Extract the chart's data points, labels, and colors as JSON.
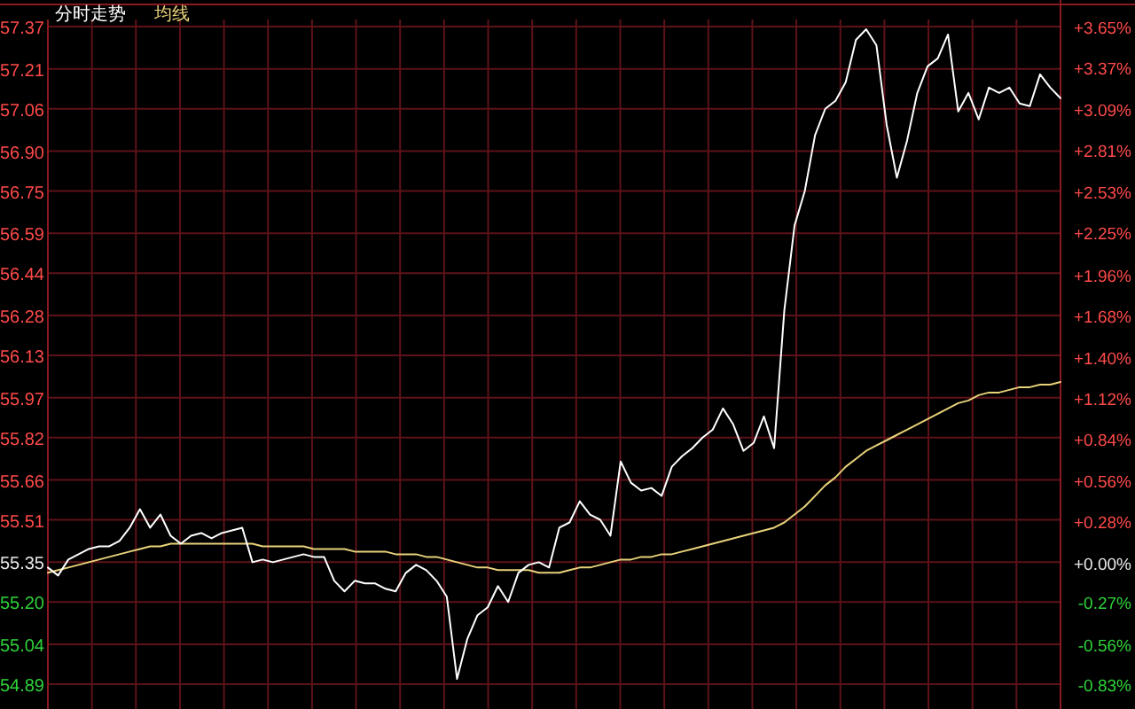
{
  "chart_data": {
    "type": "line",
    "categories": [
      null,
      null,
      null,
      null,
      null,
      null,
      null,
      null,
      null,
      null,
      null,
      null,
      null,
      null,
      null,
      null,
      null,
      null,
      null,
      null,
      null,
      null,
      null,
      null,
      null,
      null,
      null,
      null,
      null,
      null,
      null,
      null,
      null,
      null,
      null,
      null,
      null,
      null,
      null,
      null,
      null,
      null,
      null,
      null,
      null,
      null,
      null,
      null,
      null,
      null,
      null,
      null,
      null,
      null,
      null,
      null,
      null,
      null,
      null,
      null,
      null,
      null,
      null,
      null,
      null,
      null,
      null,
      null,
      null,
      null,
      null,
      null,
      null,
      null,
      null,
      null,
      null,
      null,
      null,
      null,
      null,
      null,
      null,
      null,
      null,
      null,
      null,
      null,
      null,
      null,
      null,
      null,
      null,
      null,
      null,
      null,
      null,
      null,
      null,
      null
    ],
    "series": [
      {
        "name": "分时走势",
        "color": "#ffffff",
        "values": [
          55.33,
          55.3,
          55.36,
          55.38,
          55.4,
          55.41,
          55.41,
          55.43,
          55.48,
          55.55,
          55.48,
          55.53,
          55.45,
          55.42,
          55.45,
          55.46,
          55.44,
          55.46,
          55.47,
          55.48,
          55.35,
          55.36,
          55.35,
          55.36,
          55.37,
          55.38,
          55.37,
          55.37,
          55.28,
          55.24,
          55.28,
          55.27,
          55.27,
          55.25,
          55.24,
          55.31,
          55.34,
          55.32,
          55.28,
          55.22,
          54.91,
          55.06,
          55.15,
          55.18,
          55.26,
          55.2,
          55.31,
          55.34,
          55.35,
          55.33,
          55.48,
          55.5,
          55.58,
          55.53,
          55.51,
          55.45,
          55.73,
          55.65,
          55.62,
          55.63,
          55.6,
          55.71,
          55.75,
          55.78,
          55.82,
          55.85,
          55.93,
          55.87,
          55.77,
          55.8,
          55.9,
          55.78,
          56.3,
          56.62,
          56.75,
          56.96,
          57.06,
          57.09,
          57.16,
          57.32,
          57.36,
          57.3,
          57.0,
          56.8,
          56.94,
          57.12,
          57.22,
          57.25,
          57.34,
          57.05,
          57.12,
          57.02,
          57.14,
          57.12,
          57.14,
          57.08,
          57.07,
          57.19,
          57.14,
          57.1
        ]
      },
      {
        "name": "均线",
        "color": "#e8d27a",
        "values": [
          55.31,
          55.32,
          55.33,
          55.34,
          55.35,
          55.36,
          55.37,
          55.38,
          55.39,
          55.4,
          55.41,
          55.41,
          55.42,
          55.42,
          55.42,
          55.42,
          55.42,
          55.42,
          55.42,
          55.42,
          55.42,
          55.41,
          55.41,
          55.41,
          55.41,
          55.41,
          55.4,
          55.4,
          55.4,
          55.4,
          55.39,
          55.39,
          55.39,
          55.39,
          55.38,
          55.38,
          55.38,
          55.37,
          55.37,
          55.36,
          55.35,
          55.34,
          55.33,
          55.33,
          55.32,
          55.32,
          55.32,
          55.32,
          55.31,
          55.31,
          55.31,
          55.32,
          55.33,
          55.33,
          55.34,
          55.35,
          55.36,
          55.36,
          55.37,
          55.37,
          55.38,
          55.38,
          55.39,
          55.4,
          55.41,
          55.42,
          55.43,
          55.44,
          55.45,
          55.46,
          55.47,
          55.48,
          55.5,
          55.53,
          55.56,
          55.6,
          55.64,
          55.67,
          55.71,
          55.74,
          55.77,
          55.79,
          55.81,
          55.83,
          55.85,
          55.87,
          55.89,
          55.91,
          55.93,
          55.95,
          55.96,
          55.98,
          55.99,
          55.99,
          56.0,
          56.01,
          56.01,
          56.02,
          56.02,
          56.03
        ]
      }
    ],
    "ylim": [
      54.89,
      57.37
    ],
    "yticks": [
      57.37,
      57.21,
      57.06,
      {
        "value": 56.9,
        "label": "56.90"
      },
      56.75,
      56.59,
      56.44,
      56.28,
      56.13,
      55.97,
      55.82,
      55.66,
      55.51,
      55.35,
      {
        "value": 55.2,
        "label": "55.20"
      },
      55.04,
      54.89
    ],
    "y2lim": [
      -0.83,
      3.65
    ],
    "y2ticks": [
      {
        "value": 3.65,
        "label": "+3.65%"
      },
      {
        "value": 3.37,
        "label": "+3.37%"
      },
      {
        "value": 3.09,
        "label": "+3.09%"
      },
      {
        "value": 2.81,
        "label": "+2.81%"
      },
      {
        "value": 2.53,
        "label": "+2.53%"
      },
      {
        "value": 2.25,
        "label": "+2.25%"
      },
      {
        "value": 1.96,
        "label": "+1.96%"
      },
      {
        "value": 1.68,
        "label": "+1.68%"
      },
      {
        "value": 1.4,
        "label": "+1.40%"
      },
      {
        "value": 1.12,
        "label": "+1.12%"
      },
      {
        "value": 0.84,
        "label": "+0.84%"
      },
      {
        "value": 0.56,
        "label": "+0.56%"
      },
      {
        "value": 0.28,
        "label": "+0.28%"
      },
      {
        "value": 0,
        "label": "+0.00%"
      },
      {
        "value": -0.27,
        "label": "-0.27%"
      },
      {
        "value": -0.56,
        "label": "-0.56%"
      },
      {
        "value": -0.83,
        "label": "-0.83%"
      }
    ],
    "grid": true,
    "legend": "top left",
    "line_style": "solid"
  }
}
